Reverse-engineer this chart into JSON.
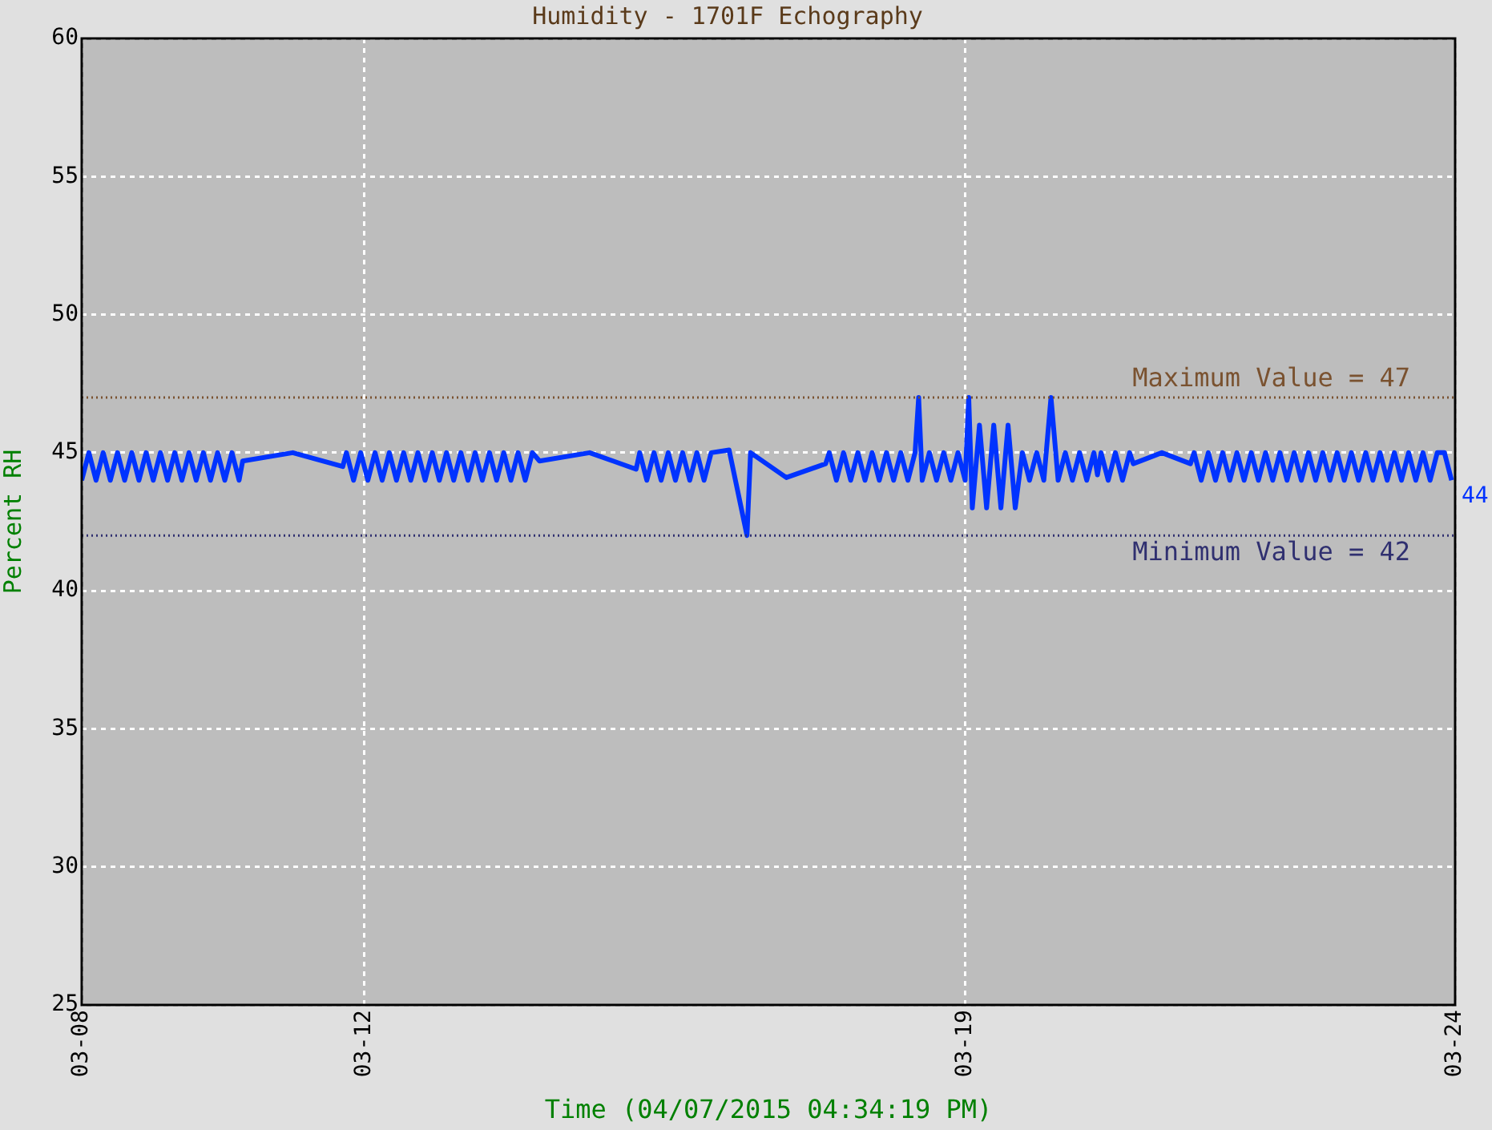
{
  "chart_data": {
    "type": "line",
    "title": "Humidity - 1701F Echography",
    "xlabel": "Time (04/07/2015 04:34:19 PM)",
    "ylabel": "Percent RH",
    "xlim": [
      "2015-03-08T17:00",
      "2015-03-24T17:00"
    ],
    "xticks": [
      {
        "value": "2015-03-08T17:00",
        "label": "03-08"
      },
      {
        "value": "2015-03-12T00:00",
        "label": "03-12"
      },
      {
        "value": "2015-03-19T00:00",
        "label": "03-19"
      },
      {
        "value": "2015-03-24T17:00",
        "label": "03-24"
      }
    ],
    "ylim": [
      25,
      60
    ],
    "yticks": [
      25,
      30,
      35,
      40,
      45,
      50,
      55,
      60
    ],
    "grid": true,
    "legend": false,
    "marker": "none",
    "line_style": "solid",
    "ref_lines": [
      {
        "axis": "y",
        "value": 47,
        "label": "Maximum Value = 47",
        "color": "#7a5230",
        "line_style": "dotted"
      },
      {
        "axis": "y",
        "value": 42,
        "label": "Minimum Value = 42",
        "color": "#303070",
        "line_style": "dotted"
      }
    ],
    "annotations": [
      {
        "text": "44",
        "x": "2015-03-24T17:00",
        "y": 44
      }
    ],
    "series": [
      {
        "color": "#0033ff",
        "x": [
          "2015-03-08T17:00",
          "2015-03-08T19:00",
          "2015-03-08T21:00",
          "2015-03-08T23:00",
          "2015-03-09T01:00",
          "2015-03-09T03:00",
          "2015-03-09T05:00",
          "2015-03-09T07:00",
          "2015-03-09T09:00",
          "2015-03-09T11:00",
          "2015-03-09T13:00",
          "2015-03-09T15:00",
          "2015-03-09T17:00",
          "2015-03-09T19:00",
          "2015-03-09T21:00",
          "2015-03-09T23:00",
          "2015-03-10T01:00",
          "2015-03-10T03:00",
          "2015-03-10T05:00",
          "2015-03-10T07:00",
          "2015-03-10T09:00",
          "2015-03-10T11:00",
          "2015-03-10T13:00",
          "2015-03-10T14:00",
          "2015-03-11T04:00",
          "2015-03-11T18:00",
          "2015-03-11T19:00",
          "2015-03-11T21:00",
          "2015-03-11T23:00",
          "2015-03-12T01:00",
          "2015-03-12T03:00",
          "2015-03-12T05:00",
          "2015-03-12T07:00",
          "2015-03-12T09:00",
          "2015-03-12T11:00",
          "2015-03-12T13:00",
          "2015-03-12T15:00",
          "2015-03-12T17:00",
          "2015-03-12T19:00",
          "2015-03-12T21:00",
          "2015-03-12T23:00",
          "2015-03-13T01:00",
          "2015-03-13T03:00",
          "2015-03-13T05:00",
          "2015-03-13T07:00",
          "2015-03-13T09:00",
          "2015-03-13T11:00",
          "2015-03-13T13:00",
          "2015-03-13T15:00",
          "2015-03-13T17:00",
          "2015-03-13T19:00",
          "2015-03-13T21:00",
          "2015-03-13T23:00",
          "2015-03-14T01:00",
          "2015-03-14T15:00",
          "2015-03-15T04:00",
          "2015-03-15T05:00",
          "2015-03-15T07:00",
          "2015-03-15T09:00",
          "2015-03-15T11:00",
          "2015-03-15T13:00",
          "2015-03-15T15:00",
          "2015-03-15T17:00",
          "2015-03-15T19:00",
          "2015-03-15T21:00",
          "2015-03-15T23:00",
          "2015-03-16T01:00",
          "2015-03-16T06:00",
          "2015-03-16T11:00",
          "2015-03-16T12:00",
          "2015-03-16T22:00",
          "2015-03-17T09:00",
          "2015-03-17T10:00",
          "2015-03-17T12:00",
          "2015-03-17T14:00",
          "2015-03-17T16:00",
          "2015-03-17T18:00",
          "2015-03-17T20:00",
          "2015-03-17T22:00",
          "2015-03-18T00:00",
          "2015-03-18T02:00",
          "2015-03-18T04:00",
          "2015-03-18T06:00",
          "2015-03-18T08:00",
          "2015-03-18T10:00",
          "2015-03-18T11:00",
          "2015-03-18T12:00",
          "2015-03-18T14:00",
          "2015-03-18T16:00",
          "2015-03-18T18:00",
          "2015-03-18T20:00",
          "2015-03-18T22:00",
          "2015-03-19T00:00",
          "2015-03-19T01:00",
          "2015-03-19T02:00",
          "2015-03-19T04:00",
          "2015-03-19T06:00",
          "2015-03-19T08:00",
          "2015-03-19T10:00",
          "2015-03-19T12:00",
          "2015-03-19T14:00",
          "2015-03-19T16:00",
          "2015-03-19T18:00",
          "2015-03-19T20:00",
          "2015-03-19T22:00",
          "2015-03-20T00:00",
          "2015-03-20T02:00",
          "2015-03-20T04:00",
          "2015-03-20T06:00",
          "2015-03-20T08:00",
          "2015-03-20T10:00",
          "2015-03-20T12:00",
          "2015-03-20T13:00",
          "2015-03-20T14:00",
          "2015-03-20T16:00",
          "2015-03-20T18:00",
          "2015-03-20T20:00",
          "2015-03-20T22:00",
          "2015-03-20T23:00",
          "2015-03-21T07:00",
          "2015-03-21T15:00",
          "2015-03-21T16:00",
          "2015-03-21T18:00",
          "2015-03-21T20:00",
          "2015-03-21T22:00",
          "2015-03-22T00:00",
          "2015-03-22T02:00",
          "2015-03-22T04:00",
          "2015-03-22T06:00",
          "2015-03-22T08:00",
          "2015-03-22T10:00",
          "2015-03-22T12:00",
          "2015-03-22T14:00",
          "2015-03-22T16:00",
          "2015-03-22T18:00",
          "2015-03-22T20:00",
          "2015-03-22T22:00",
          "2015-03-23T00:00",
          "2015-03-23T02:00",
          "2015-03-23T04:00",
          "2015-03-23T06:00",
          "2015-03-23T08:00",
          "2015-03-23T10:00",
          "2015-03-23T12:00",
          "2015-03-23T14:00",
          "2015-03-23T16:00",
          "2015-03-23T18:00",
          "2015-03-23T20:00",
          "2015-03-23T22:00",
          "2015-03-24T00:00",
          "2015-03-24T02:00",
          "2015-03-24T04:00",
          "2015-03-24T06:00",
          "2015-03-24T08:00",
          "2015-03-24T10:00",
          "2015-03-24T12:00",
          "2015-03-24T14:00",
          "2015-03-24T16:00"
        ],
        "values": [
          44,
          45,
          44,
          45,
          44,
          45,
          44,
          45,
          44,
          45,
          44,
          45,
          44,
          45,
          44,
          45,
          44,
          45,
          44,
          45,
          44,
          45,
          44,
          44.7,
          45,
          44.5,
          45,
          44,
          45,
          44,
          45,
          44,
          45,
          44,
          45,
          44,
          45,
          44,
          45,
          44,
          45,
          44,
          45,
          44,
          45,
          44,
          45,
          44,
          45,
          44,
          45,
          44,
          45,
          44.7,
          45,
          44.4,
          45,
          44,
          45,
          44,
          45,
          44,
          45,
          44,
          45,
          44,
          45,
          45.1,
          42,
          45,
          44.1,
          44.6,
          45,
          44,
          45,
          44,
          45,
          44,
          45,
          44,
          45,
          44,
          45,
          44,
          45,
          47,
          44,
          45,
          44,
          45,
          44,
          45,
          44,
          47,
          43,
          46,
          43,
          46,
          43,
          46,
          43,
          45,
          44,
          45,
          44,
          47,
          44,
          45,
          44,
          45,
          44,
          45,
          44.2,
          45,
          44,
          45,
          44,
          45,
          44.6,
          45,
          44.6,
          45,
          44,
          45,
          44,
          45,
          44,
          45,
          44,
          45,
          44,
          45,
          44,
          45,
          44,
          45,
          44,
          45,
          44,
          45,
          44,
          45,
          44,
          45,
          44,
          45,
          44,
          45,
          44,
          45,
          44,
          45,
          44,
          45,
          44,
          45,
          45,
          44
        ]
      }
    ]
  }
}
